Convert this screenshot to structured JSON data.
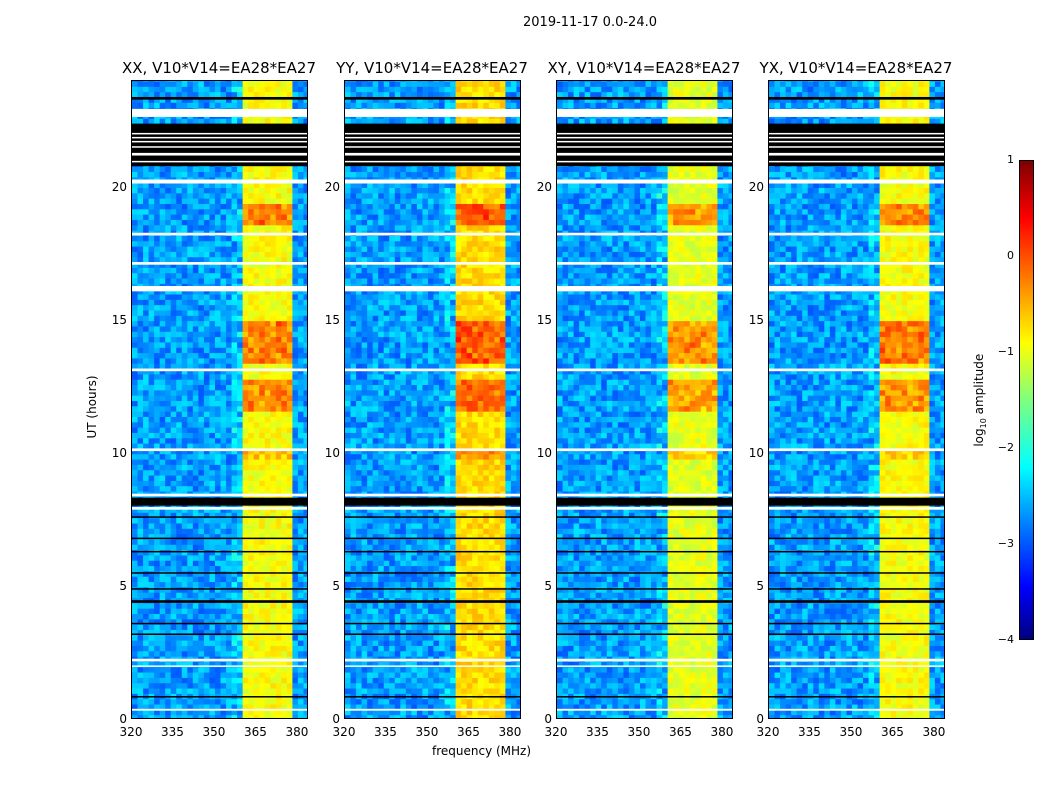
{
  "figure": {
    "suptitle": "2019-11-17 0.0-24.0",
    "xlabel": "frequency (MHz)",
    "ylabel": "UT (hours)"
  },
  "colorbar": {
    "label_pre": "log",
    "label_sub": "10",
    "label_post": " amplitude",
    "ticks": [
      "1",
      "0",
      "−1",
      "−2",
      "−3",
      "−4"
    ],
    "range": [
      -4,
      1
    ]
  },
  "chart_data": {
    "type": "heatmap",
    "title": "2019-11-17 0.0-24.0",
    "xlabel": "frequency (MHz)",
    "ylabel": "UT (hours)",
    "xlim": [
      320,
      384
    ],
    "ylim": [
      0,
      24
    ],
    "xticks": [
      "320",
      "335",
      "350",
      "365",
      "380"
    ],
    "yticks": [
      "0",
      "5",
      "10",
      "15",
      "20"
    ],
    "colorscale": "jet",
    "zlabel": "log10 amplitude",
    "zlim": [
      -4,
      1
    ],
    "panels": [
      {
        "title": "XX, V10*V14=EA28*EA27",
        "band_level": -0.9
      },
      {
        "title": "YY, V10*V14=EA28*EA27",
        "band_level": -0.7
      },
      {
        "title": "XY, V10*V14=EA28*EA27",
        "band_level": -1.0
      },
      {
        "title": "YX, V10*V14=EA28*EA27",
        "band_level": -0.9
      }
    ],
    "background_level": -2.6,
    "rfi_band_channels_mhz": [
      [
        360.5,
        364.5
      ],
      [
        365,
        369.5
      ],
      [
        370,
        373.5
      ],
      [
        374,
        378.5
      ]
    ],
    "strong_rfi_hours": [
      [
        18.6,
        19.3,
        0.8
      ],
      [
        13.3,
        15.0,
        0.8
      ],
      [
        11.5,
        12.8,
        0.7
      ],
      [
        9.8,
        10.2,
        0.4
      ]
    ],
    "flagged_white_hours": [
      [
        22.65,
        22.95
      ],
      [
        21.2,
        21.3
      ],
      [
        20.15,
        20.3
      ],
      [
        18.2,
        18.3
      ],
      [
        17.1,
        17.2
      ],
      [
        16.1,
        16.3
      ],
      [
        13.1,
        13.2
      ],
      [
        10.1,
        10.2
      ],
      [
        8.4,
        8.5
      ],
      [
        7.9,
        8.0
      ],
      [
        2.2,
        2.3
      ],
      [
        2.0,
        2.05
      ],
      [
        0.35,
        0.42
      ]
    ],
    "flagged_black_hours": [
      [
        20.8,
        22.4
      ],
      [
        23.3,
        23.4
      ],
      [
        8.05,
        8.35
      ],
      [
        7.6,
        7.65
      ],
      [
        6.8,
        6.85
      ],
      [
        6.3,
        6.35
      ],
      [
        5.5,
        5.55
      ],
      [
        4.9,
        4.95
      ],
      [
        4.4,
        4.5
      ],
      [
        3.6,
        3.65
      ],
      [
        3.2,
        3.25
      ],
      [
        0.85,
        0.9
      ]
    ]
  }
}
